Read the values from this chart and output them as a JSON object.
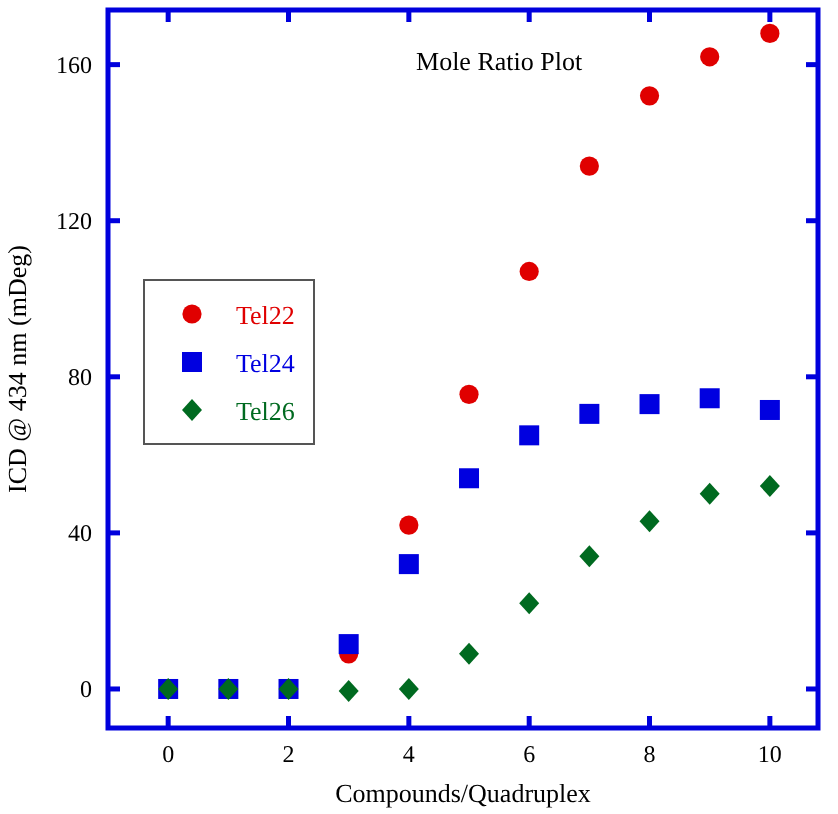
{
  "chart_data": {
    "type": "scatter",
    "title": "Mole Ratio Plot",
    "xlabel": "Compounds/Quadruplex",
    "ylabel": "ICD @ 434 nm (mDeg)",
    "x": [
      0,
      1,
      2,
      3,
      4,
      5,
      6,
      7,
      8,
      9,
      10
    ],
    "series": [
      {
        "name": "Tel22",
        "color": "#e00000",
        "marker": "circle",
        "values": [
          null,
          null,
          null,
          9,
          42,
          75.5,
          107,
          134,
          152,
          162,
          168
        ]
      },
      {
        "name": "Tel24",
        "color": "#0000e0",
        "marker": "square",
        "values": [
          0,
          0,
          0,
          11.5,
          32,
          54,
          65,
          70.5,
          73,
          74.5,
          71.5
        ]
      },
      {
        "name": "Tel26",
        "color": "#006a20",
        "marker": "diamond",
        "values": [
          0,
          0,
          0,
          -0.5,
          0,
          9,
          22,
          34,
          43,
          50,
          52
        ]
      }
    ],
    "xlim": [
      -1,
      10.8
    ],
    "ylim": [
      -10,
      174
    ],
    "xticks": [
      0,
      2,
      4,
      6,
      8,
      10
    ],
    "yticks": [
      0,
      40,
      80,
      120,
      160
    ],
    "grid": false,
    "legend": "left"
  }
}
